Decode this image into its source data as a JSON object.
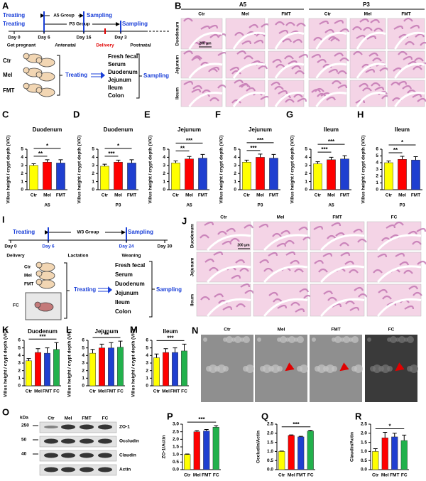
{
  "scheme_a": {
    "panel": "A",
    "treating1": "Treating",
    "group1": "A5 Group",
    "sampling1": "Sampling",
    "treating2": "Treating",
    "group2": "P3 Group",
    "sampling2": "Sampling",
    "ticks": [
      "Day 0",
      "Day 6",
      "Day 16",
      "Day 3"
    ],
    "phases": [
      "Get pregnant",
      "Antenatal",
      "Delivery",
      "Postnatal"
    ],
    "groups": [
      "Ctr",
      "Mel",
      "FMT"
    ],
    "treating3": "Treating",
    "samples": [
      "Fresh fecal",
      "Serum",
      "Duodenum",
      "Jejunum",
      "Ileum",
      "Colon"
    ],
    "sampling3": "Sampling"
  },
  "histology_b": {
    "panel": "B",
    "groups": [
      "A5",
      "P3"
    ],
    "columns": [
      "Ctr",
      "Mel",
      "FMT",
      "Ctr",
      "Mel",
      "FMT"
    ],
    "rows": [
      "Duodenum",
      "Jejunum",
      "Ileum"
    ],
    "scale": "200 μm"
  },
  "scheme_i": {
    "panel": "I",
    "treating": "Treating",
    "group": "W3 Group",
    "sampling": "Sampling",
    "ticks": [
      "Day 0",
      "Day 6",
      "Day 24",
      "Day 30"
    ],
    "phases": [
      "Delivery",
      "Lactation",
      "Weaning"
    ],
    "groups": [
      "Ctr",
      "Mel",
      "FMT",
      "FC"
    ],
    "treating2": "Treating",
    "samples": [
      "Fresh fecal",
      "Serum",
      "Duodenum",
      "Jejunum",
      "Ileum",
      "Colon"
    ],
    "sampling2": "Sampling"
  },
  "histology_j": {
    "panel": "J",
    "columns": [
      "Ctr",
      "Mel",
      "FMT",
      "FC"
    ],
    "rows": [
      "Duodenum",
      "Jejunum",
      "Ileum"
    ],
    "scale": "200 μm"
  },
  "sem_n": {
    "panel": "N",
    "columns": [
      "Ctr",
      "Mel",
      "FMT",
      "FC"
    ]
  },
  "blot_o": {
    "panel": "O",
    "unit": "kDa",
    "lanes": [
      "Ctr",
      "Mel",
      "FMT",
      "FC"
    ],
    "markers": [
      "250",
      "50",
      "40"
    ],
    "proteins": [
      "ZO-1",
      "Occludin",
      "Claudin",
      "Actin"
    ]
  },
  "chart_data": [
    {
      "type": "bar",
      "panel": "C",
      "title": "Duodenum",
      "ylabel": "Villus height / crypt depth (V/C)",
      "xlabel": "A5",
      "categories": [
        "Ctr",
        "Mel",
        "FMT"
      ],
      "values": [
        3.0,
        3.4,
        3.3
      ],
      "errors": [
        0.2,
        0.3,
        0.4
      ],
      "colors": [
        "#ffff00",
        "#ff0000",
        "#1f3fd0"
      ],
      "ylim": [
        0,
        5
      ],
      "yticks": [
        0,
        1,
        2,
        3,
        4,
        5
      ],
      "annotations": [
        {
          "label": "**",
          "pair": [
            "Ctr",
            "Mel"
          ]
        },
        {
          "label": "*",
          "pair": [
            "Ctr",
            "FMT"
          ]
        }
      ]
    },
    {
      "type": "bar",
      "panel": "D",
      "title": "Duodenum",
      "ylabel": "Villus height / crypt depth (V/C)",
      "xlabel": "P3",
      "categories": [
        "Ctr",
        "Mel",
        "FMT"
      ],
      "values": [
        2.9,
        3.4,
        3.3
      ],
      "errors": [
        0.25,
        0.25,
        0.4
      ],
      "colors": [
        "#ffff00",
        "#ff0000",
        "#1f3fd0"
      ],
      "ylim": [
        0,
        5
      ],
      "yticks": [
        0,
        1,
        2,
        3,
        4,
        5
      ],
      "annotations": [
        {
          "label": "***",
          "pair": [
            "Ctr",
            "Mel"
          ]
        },
        {
          "label": "*",
          "pair": [
            "Ctr",
            "FMT"
          ]
        }
      ]
    },
    {
      "type": "bar",
      "panel": "E",
      "title": "Jejunum",
      "ylabel": "Villus height / crypt depth (V/C)",
      "xlabel": "A5",
      "categories": [
        "Ctr",
        "Mel",
        "FMT"
      ],
      "values": [
        3.3,
        3.8,
        3.9
      ],
      "errors": [
        0.25,
        0.3,
        0.45
      ],
      "colors": [
        "#ffff00",
        "#ff0000",
        "#1f3fd0"
      ],
      "ylim": [
        0,
        5
      ],
      "yticks": [
        0,
        1,
        2,
        3,
        4,
        5
      ],
      "annotations": [
        {
          "label": "**",
          "pair": [
            "Ctr",
            "Mel"
          ]
        },
        {
          "label": "***",
          "pair": [
            "Ctr",
            "FMT"
          ]
        }
      ]
    },
    {
      "type": "bar",
      "panel": "F",
      "title": "Jejunum",
      "ylabel": "Villus height / crypt depth (V/C)",
      "xlabel": "P3",
      "categories": [
        "Ctr",
        "Mel",
        "FMT"
      ],
      "values": [
        3.4,
        4.0,
        3.9
      ],
      "errors": [
        0.25,
        0.4,
        0.45
      ],
      "colors": [
        "#ffff00",
        "#ff0000",
        "#1f3fd0"
      ],
      "ylim": [
        0,
        5
      ],
      "yticks": [
        0,
        1,
        2,
        3,
        4,
        5
      ],
      "annotations": [
        {
          "label": "***",
          "pair": [
            "Ctr",
            "Mel"
          ]
        },
        {
          "label": "***",
          "pair": [
            "Ctr",
            "FMT"
          ]
        }
      ]
    },
    {
      "type": "bar",
      "panel": "G",
      "title": "Ileum",
      "ylabel": "Villus height / crypt depth (V/C)",
      "xlabel": "A5",
      "categories": [
        "Ctr",
        "Mel",
        "FMT"
      ],
      "values": [
        3.2,
        3.7,
        3.8
      ],
      "errors": [
        0.25,
        0.3,
        0.4
      ],
      "colors": [
        "#ffff00",
        "#ff0000",
        "#1f3fd0"
      ],
      "ylim": [
        0,
        5
      ],
      "yticks": [
        0,
        1,
        2,
        3,
        4,
        5
      ],
      "annotations": [
        {
          "label": "***",
          "pair": [
            "Ctr",
            "Mel"
          ]
        },
        {
          "label": "***",
          "pair": [
            "Ctr",
            "FMT"
          ]
        }
      ]
    },
    {
      "type": "bar",
      "panel": "H",
      "title": "Ileum",
      "ylabel": "Villus height / crypt depth (V/C)",
      "xlabel": "P3",
      "categories": [
        "Ctr",
        "Mel",
        "FMT"
      ],
      "values": [
        4.0,
        4.5,
        4.4
      ],
      "errors": [
        0.25,
        0.45,
        0.5
      ],
      "colors": [
        "#ffff00",
        "#ff0000",
        "#1f3fd0"
      ],
      "ylim": [
        0,
        6
      ],
      "yticks": [
        0,
        1,
        2,
        3,
        4,
        5,
        6
      ],
      "annotations": [
        {
          "label": "**",
          "pair": [
            "Ctr",
            "Mel"
          ]
        },
        {
          "label": "*",
          "pair": [
            "Ctr",
            "FMT"
          ]
        }
      ]
    },
    {
      "type": "bar",
      "panel": "K",
      "title": "Duodenum",
      "ylabel": "Villus height / crypt depth (V/C)",
      "categories": [
        "Ctr",
        "Mel",
        "FMT",
        "FC"
      ],
      "values": [
        3.3,
        4.4,
        4.3,
        4.8
      ],
      "errors": [
        0.3,
        0.5,
        0.7,
        0.9
      ],
      "colors": [
        "#ffff00",
        "#ff0000",
        "#1f3fd0",
        "#22b14c"
      ],
      "ylim": [
        0,
        6
      ],
      "yticks": [
        0,
        1,
        2,
        3,
        4,
        5,
        6
      ],
      "annotations": [
        {
          "label": "***",
          "pair": [
            "Ctr",
            "FC"
          ]
        }
      ]
    },
    {
      "type": "bar",
      "panel": "L",
      "title": "Jejunum",
      "ylabel": "Villus height / crypt depth (V/C)",
      "categories": [
        "Ctr",
        "Mel",
        "FMT",
        "FC"
      ],
      "values": [
        4.3,
        5.0,
        5.0,
        5.1
      ],
      "errors": [
        0.5,
        0.5,
        0.7,
        0.8
      ],
      "colors": [
        "#ffff00",
        "#ff0000",
        "#1f3fd0",
        "#22b14c"
      ],
      "ylim": [
        0,
        6
      ],
      "yticks": [
        0,
        1,
        2,
        3,
        4,
        5,
        6
      ],
      "annotations": [
        {
          "label": "**",
          "pair": [
            "Ctr",
            "FC"
          ]
        }
      ]
    },
    {
      "type": "bar",
      "panel": "M",
      "title": "Ileum",
      "ylabel": "Villus height / crypt depth (V/C)",
      "categories": [
        "Ctr",
        "Mel",
        "FMT",
        "FC"
      ],
      "values": [
        3.7,
        4.4,
        4.4,
        4.6
      ],
      "errors": [
        0.5,
        0.5,
        0.6,
        0.9
      ],
      "colors": [
        "#ffff00",
        "#ff0000",
        "#1f3fd0",
        "#22b14c"
      ],
      "ylim": [
        0,
        6
      ],
      "yticks": [
        0,
        1,
        2,
        3,
        4,
        5,
        6
      ],
      "annotations": [
        {
          "label": "***",
          "pair": [
            "Ctr",
            "FC"
          ]
        }
      ]
    },
    {
      "type": "bar",
      "panel": "P",
      "ylabel": "ZO-1/Actin",
      "categories": [
        "Ctr",
        "Mel",
        "FMT",
        "FC"
      ],
      "values": [
        1.0,
        2.5,
        2.55,
        2.8
      ],
      "errors": [
        0.03,
        0.08,
        0.1,
        0.1
      ],
      "colors": [
        "#ffff00",
        "#ff0000",
        "#1f3fd0",
        "#22b14c"
      ],
      "ylim": [
        0,
        3
      ],
      "yticks": [
        {
          "value": 0,
          "label": "0.0"
        },
        0.5,
        {
          "value": 1,
          "label": "1.0"
        },
        1.5,
        {
          "value": 2,
          "label": "2.0"
        },
        2.5,
        {
          "value": 3,
          "label": "3.0"
        }
      ],
      "annotations": [
        {
          "label": "***",
          "pair": [
            "Ctr",
            "FC"
          ]
        }
      ]
    },
    {
      "type": "bar",
      "panel": "Q",
      "ylabel": "Occludin/Actin",
      "categories": [
        "Ctr",
        "Mel",
        "FMT",
        "FC"
      ],
      "values": [
        1.0,
        1.88,
        1.8,
        2.12
      ],
      "errors": [
        0.02,
        0.03,
        0.03,
        0.04
      ],
      "colors": [
        "#ffff00",
        "#ff0000",
        "#1f3fd0",
        "#22b14c"
      ],
      "ylim": [
        0,
        2.5
      ],
      "yticks": [
        {
          "value": 0,
          "label": "0.0"
        },
        0.5,
        {
          "value": 1,
          "label": "1.0"
        },
        1.5,
        {
          "value": 2,
          "label": "2.0"
        },
        2.5
      ],
      "annotations": [
        {
          "label": "***",
          "pair": [
            "Ctr",
            "FC"
          ]
        }
      ]
    },
    {
      "type": "bar",
      "panel": "R",
      "ylabel": "Claudin/Actin",
      "categories": [
        "Ctr",
        "Mel",
        "FMT",
        "FC"
      ],
      "values": [
        1.0,
        1.75,
        1.8,
        1.6
      ],
      "errors": [
        0.15,
        0.3,
        0.2,
        0.3
      ],
      "colors": [
        "#ffff00",
        "#ff0000",
        "#1f3fd0",
        "#22b14c"
      ],
      "ylim": [
        0,
        2.5
      ],
      "yticks": [
        {
          "value": 0,
          "label": "0.0"
        },
        0.5,
        {
          "value": 1,
          "label": "1.0"
        },
        1.5,
        {
          "value": 2,
          "label": "2.0"
        },
        2.5
      ],
      "annotations": [
        {
          "label": "*",
          "pair": [
            "Ctr",
            "FC"
          ]
        }
      ]
    }
  ]
}
